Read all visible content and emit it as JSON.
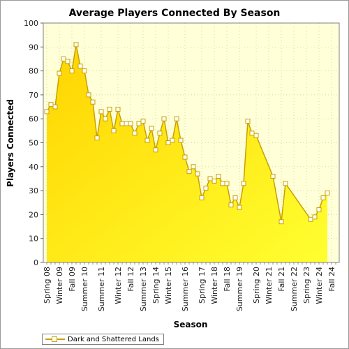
{
  "chart_data": {
    "type": "area",
    "title": "Average Players Connected By Season",
    "xlabel": "Season",
    "ylabel": "Players Connected",
    "ylim": [
      0,
      100
    ],
    "yticks": [
      0,
      10,
      20,
      30,
      40,
      50,
      60,
      70,
      80,
      90,
      100
    ],
    "grid": true,
    "legend_position": "bottom-left",
    "x_tick_labels": [
      {
        "index": 0,
        "label": "Spring 08"
      },
      {
        "index": 3,
        "label": "Winter 09"
      },
      {
        "index": 6,
        "label": "Fall 09"
      },
      {
        "index": 9,
        "label": "Summer 10"
      },
      {
        "index": 13,
        "label": "Summer 11"
      },
      {
        "index": 17,
        "label": "Winter 12"
      },
      {
        "index": 20,
        "label": "Fall 12"
      },
      {
        "index": 23,
        "label": "Summer 13"
      },
      {
        "index": 26,
        "label": "Spring 14"
      },
      {
        "index": 29,
        "label": "Winter 15"
      },
      {
        "index": 33,
        "label": "Summer 16"
      },
      {
        "index": 37,
        "label": "Spring 17"
      },
      {
        "index": 40,
        "label": "Winter 18"
      },
      {
        "index": 43,
        "label": "Fall 18"
      },
      {
        "index": 46,
        "label": "Summer 19"
      },
      {
        "index": 50,
        "label": "Spring 20"
      },
      {
        "index": 53,
        "label": "Winter 21"
      },
      {
        "index": 56,
        "label": "Fall 21"
      },
      {
        "index": 59,
        "label": "Summer 22"
      },
      {
        "index": 62,
        "label": "Spring 23"
      },
      {
        "index": 65,
        "label": "Winter 24"
      },
      {
        "index": 68,
        "label": "Fall 24"
      }
    ],
    "x_count": 70,
    "series": [
      {
        "name": "Dark and Shattered Lands",
        "points": [
          {
            "i": 0,
            "y": 63
          },
          {
            "i": 1,
            "y": 66
          },
          {
            "i": 2,
            "y": 65
          },
          {
            "i": 3,
            "y": 79
          },
          {
            "i": 4,
            "y": 85
          },
          {
            "i": 5,
            "y": 84
          },
          {
            "i": 6,
            "y": 80
          },
          {
            "i": 7,
            "y": 91
          },
          {
            "i": 8,
            "y": 82
          },
          {
            "i": 9,
            "y": 80
          },
          {
            "i": 10,
            "y": 70
          },
          {
            "i": 11,
            "y": 67
          },
          {
            "i": 12,
            "y": 52
          },
          {
            "i": 13,
            "y": 63
          },
          {
            "i": 14,
            "y": 60
          },
          {
            "i": 15,
            "y": 64
          },
          {
            "i": 16,
            "y": 55
          },
          {
            "i": 17,
            "y": 64
          },
          {
            "i": 18,
            "y": 58
          },
          {
            "i": 19,
            "y": 58
          },
          {
            "i": 20,
            "y": 58
          },
          {
            "i": 21,
            "y": 54
          },
          {
            "i": 22,
            "y": 58
          },
          {
            "i": 23,
            "y": 59
          },
          {
            "i": 24,
            "y": 51
          },
          {
            "i": 25,
            "y": 56
          },
          {
            "i": 26,
            "y": 47
          },
          {
            "i": 27,
            "y": 54
          },
          {
            "i": 28,
            "y": 60
          },
          {
            "i": 29,
            "y": 50
          },
          {
            "i": 30,
            "y": 51
          },
          {
            "i": 31,
            "y": 60
          },
          {
            "i": 32,
            "y": 51
          },
          {
            "i": 33,
            "y": 44
          },
          {
            "i": 34,
            "y": 38
          },
          {
            "i": 35,
            "y": 40
          },
          {
            "i": 36,
            "y": 37
          },
          {
            "i": 37,
            "y": 27
          },
          {
            "i": 38,
            "y": 31
          },
          {
            "i": 39,
            "y": 35
          },
          {
            "i": 40,
            "y": 34
          },
          {
            "i": 41,
            "y": 36
          },
          {
            "i": 42,
            "y": 33
          },
          {
            "i": 43,
            "y": 33
          },
          {
            "i": 44,
            "y": 24
          },
          {
            "i": 45,
            "y": 27
          },
          {
            "i": 46,
            "y": 23
          },
          {
            "i": 47,
            "y": 33
          },
          {
            "i": 48,
            "y": 59
          },
          {
            "i": 49,
            "y": 54
          },
          {
            "i": 50,
            "y": 53
          },
          {
            "i": 54,
            "y": 36
          },
          {
            "i": 56,
            "y": 17
          },
          {
            "i": 57,
            "y": 33
          },
          {
            "i": 63,
            "y": 18
          },
          {
            "i": 64,
            "y": 19
          },
          {
            "i": 65,
            "y": 22
          },
          {
            "i": 66,
            "y": 27
          },
          {
            "i": 67,
            "y": 29
          }
        ]
      }
    ],
    "colors": {
      "area_top": "#ffd400",
      "area_bottom": "#ffff30",
      "line": "#c8a000",
      "marker_fill": "#ffffff",
      "plot_bg": "#ffffd8",
      "grid": "#c8c8a0"
    }
  }
}
